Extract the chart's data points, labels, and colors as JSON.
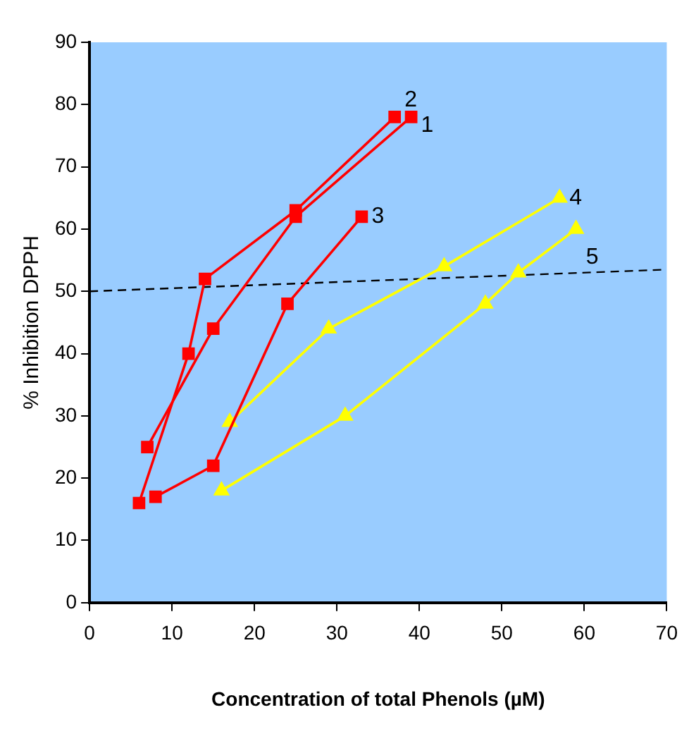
{
  "chart_data": {
    "type": "line",
    "xlabel": "Concentration of total Phenols (µM)",
    "ylabel": "% Inhibition DPPH",
    "xlim": [
      0,
      70
    ],
    "xticks": [
      0,
      10,
      20,
      30,
      40,
      50,
      60,
      70
    ],
    "ylim": [
      0,
      90
    ],
    "yticks": [
      0,
      10,
      20,
      30,
      40,
      50,
      60,
      70,
      80,
      90
    ],
    "grid": false,
    "legend": false,
    "series": [
      {
        "name": "1",
        "color": "#ff0000",
        "marker": "square",
        "x": [
          7,
          15,
          25,
          39
        ],
        "values": [
          25,
          44,
          62,
          78
        ]
      },
      {
        "name": "2",
        "color": "#ff0000",
        "marker": "square",
        "x": [
          6,
          12,
          14,
          25,
          37
        ],
        "values": [
          16,
          40,
          52,
          63,
          78
        ]
      },
      {
        "name": "3",
        "color": "#ff0000",
        "marker": "square",
        "x": [
          8,
          15,
          24,
          33
        ],
        "values": [
          17,
          22,
          48,
          62
        ]
      },
      {
        "name": "4",
        "color": "#ffff00",
        "marker": "triangle",
        "x": [
          17,
          29,
          43,
          57
        ],
        "values": [
          29,
          44,
          54,
          65
        ]
      },
      {
        "name": "5",
        "color": "#ffff00",
        "marker": "triangle",
        "x": [
          16,
          31,
          48,
          52,
          59
        ],
        "values": [
          18,
          30,
          48,
          53,
          60
        ]
      },
      {
        "color": "#000000",
        "marker": "none",
        "line_style": "dashed",
        "x": [
          0,
          70
        ],
        "values": [
          50,
          53.5
        ]
      }
    ]
  }
}
